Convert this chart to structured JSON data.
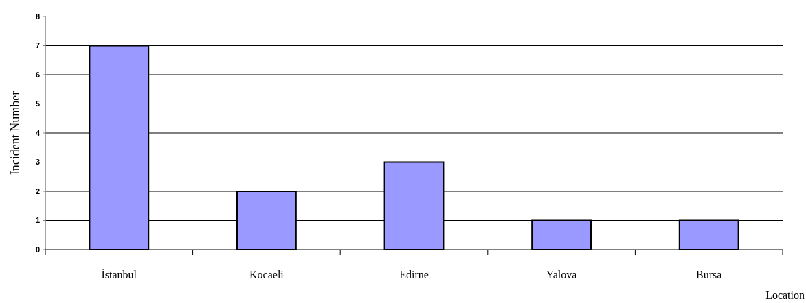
{
  "chart_data": {
    "type": "bar",
    "xlabel": "Location",
    "ylabel": "Incident Number",
    "categories": [
      "İstanbul",
      "Kocaeli",
      "Edirne",
      "Yalova",
      "Bursa"
    ],
    "values": [
      7,
      2,
      3,
      1,
      1
    ],
    "color": "#9999ff",
    "ylim": [
      0,
      8
    ],
    "yticks": [
      0,
      1,
      2,
      3,
      4,
      5,
      6,
      7,
      8
    ],
    "grid": "y"
  }
}
